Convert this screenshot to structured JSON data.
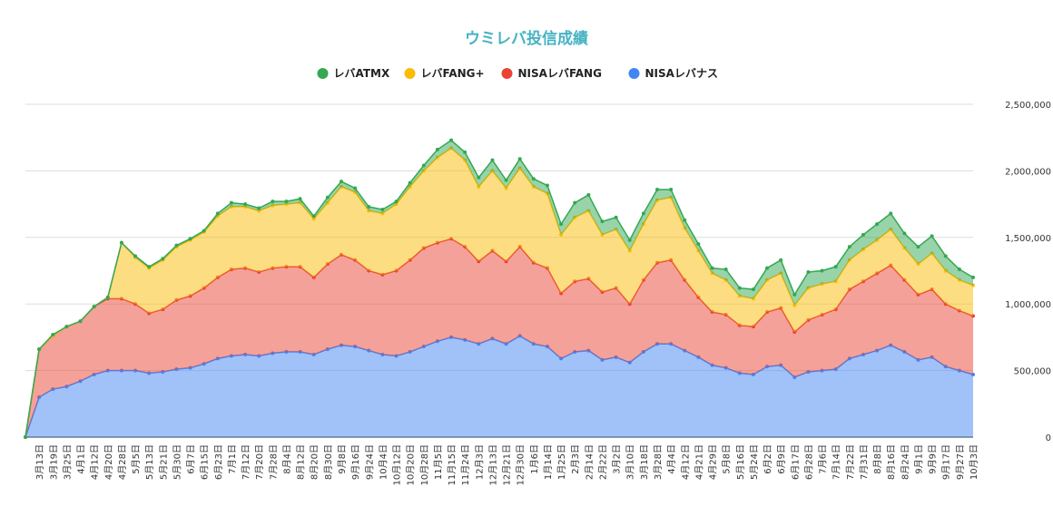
{
  "chart_data": {
    "type": "stacked-area",
    "title": "ウミレバ投信成績",
    "categories": [
      null,
      "3月13日",
      "3月19日",
      "3月25日",
      "4月1日",
      "4月12日",
      "4月20日",
      "4月28日",
      "5月5日",
      "5月13日",
      "5月21日",
      "5月30日",
      "6月7日",
      "6月15日",
      "6月23日",
      "7月1日",
      "7月12日",
      "7月20日",
      "7月28日",
      "8月4日",
      "8月12日",
      "8月20日",
      "8月30日",
      "9月8日",
      "9月16日",
      "9月24日",
      "10月4日",
      "10月12日",
      "10月20日",
      "10月28日",
      "11月5日",
      "11月15日",
      "11月24日",
      "12月3日",
      "12月13日",
      "12月21日",
      "12月30日",
      "1月6日",
      "1月14日",
      "1月25日",
      "2月3日",
      "2月14日",
      "2月22日",
      "3月2日",
      "3月10日",
      "3月18日",
      "3月28日",
      "4月4日",
      "4月12日",
      "4月21日",
      "4月29日",
      "5月8日",
      "5月16日",
      "5月24日",
      "6月2日",
      "6月9日",
      "6月17日",
      "6月28日",
      "7月6日",
      "7月14日",
      "7月22日",
      "7月31日",
      "8月8日",
      "8月16日",
      "8月24日",
      "9月1日",
      "9月9日",
      "9月17日",
      "9月27日",
      "10月3日"
    ],
    "series": [
      {
        "name": "NISAレバナス",
        "color": "#4285f4",
        "values": [
          0,
          300000,
          360000,
          380000,
          420000,
          470000,
          500000,
          500000,
          500000,
          480000,
          490000,
          510000,
          520000,
          550000,
          590000,
          610000,
          620000,
          610000,
          630000,
          640000,
          640000,
          620000,
          660000,
          690000,
          680000,
          650000,
          620000,
          610000,
          640000,
          680000,
          720000,
          750000,
          730000,
          700000,
          740000,
          700000,
          760000,
          700000,
          680000,
          590000,
          640000,
          650000,
          580000,
          600000,
          560000,
          640000,
          700000,
          700000,
          650000,
          600000,
          540000,
          520000,
          480000,
          470000,
          530000,
          540000,
          450000,
          490000,
          500000,
          510000,
          590000,
          620000,
          650000,
          690000,
          640000,
          580000,
          600000,
          530000,
          500000,
          470000
        ]
      },
      {
        "name": "NISAレバFANG",
        "color": "#ea4335",
        "values": [
          0,
          360000,
          400000,
          450000,
          450000,
          510000,
          540000,
          540000,
          500000,
          450000,
          470000,
          520000,
          540000,
          570000,
          610000,
          650000,
          650000,
          630000,
          640000,
          640000,
          640000,
          580000,
          640000,
          680000,
          650000,
          600000,
          600000,
          640000,
          690000,
          740000,
          740000,
          740000,
          700000,
          620000,
          660000,
          620000,
          670000,
          610000,
          590000,
          490000,
          530000,
          540000,
          510000,
          520000,
          440000,
          540000,
          610000,
          630000,
          530000,
          450000,
          400000,
          400000,
          360000,
          360000,
          410000,
          430000,
          340000,
          390000,
          420000,
          450000,
          520000,
          550000,
          580000,
          600000,
          540000,
          490000,
          510000,
          470000,
          450000,
          440000
        ]
      },
      {
        "name": "レバFANG+",
        "color": "#fbbc04",
        "values": [
          0,
          0,
          0,
          0,
          0,
          0,
          10000,
          420000,
          350000,
          340000,
          370000,
          400000,
          420000,
          420000,
          460000,
          470000,
          460000,
          460000,
          470000,
          470000,
          480000,
          440000,
          460000,
          510000,
          510000,
          450000,
          460000,
          500000,
          550000,
          580000,
          640000,
          680000,
          650000,
          560000,
          600000,
          550000,
          590000,
          570000,
          560000,
          440000,
          480000,
          510000,
          430000,
          440000,
          400000,
          420000,
          470000,
          470000,
          390000,
          350000,
          290000,
          260000,
          220000,
          210000,
          240000,
          260000,
          200000,
          240000,
          230000,
          210000,
          220000,
          240000,
          250000,
          270000,
          240000,
          230000,
          270000,
          250000,
          230000,
          230000
        ]
      },
      {
        "name": "レバATMX",
        "color": "#34a853",
        "values": [
          0,
          0,
          10000,
          0,
          0,
          0,
          0,
          0,
          10000,
          10000,
          10000,
          10000,
          10000,
          10000,
          20000,
          30000,
          20000,
          20000,
          30000,
          20000,
          30000,
          20000,
          40000,
          40000,
          30000,
          30000,
          30000,
          20000,
          30000,
          40000,
          60000,
          60000,
          60000,
          70000,
          80000,
          60000,
          70000,
          60000,
          60000,
          80000,
          110000,
          120000,
          100000,
          90000,
          80000,
          80000,
          80000,
          60000,
          60000,
          50000,
          40000,
          80000,
          60000,
          70000,
          90000,
          100000,
          80000,
          120000,
          100000,
          110000,
          100000,
          110000,
          120000,
          120000,
          110000,
          130000,
          130000,
          110000,
          80000,
          60000
        ]
      }
    ],
    "ylim": [
      0,
      2500000
    ],
    "yticks": [
      0,
      {
        "value": 500000,
        "label": "500,000"
      },
      {
        "value": 1000000,
        "label": "1,000,000"
      },
      {
        "value": 1500000,
        "label": "1,500,000"
      },
      {
        "value": 2000000,
        "label": "2,000,000"
      },
      {
        "value": 2500000,
        "label": "2,500,000"
      }
    ],
    "grid": true,
    "legend": "top"
  }
}
